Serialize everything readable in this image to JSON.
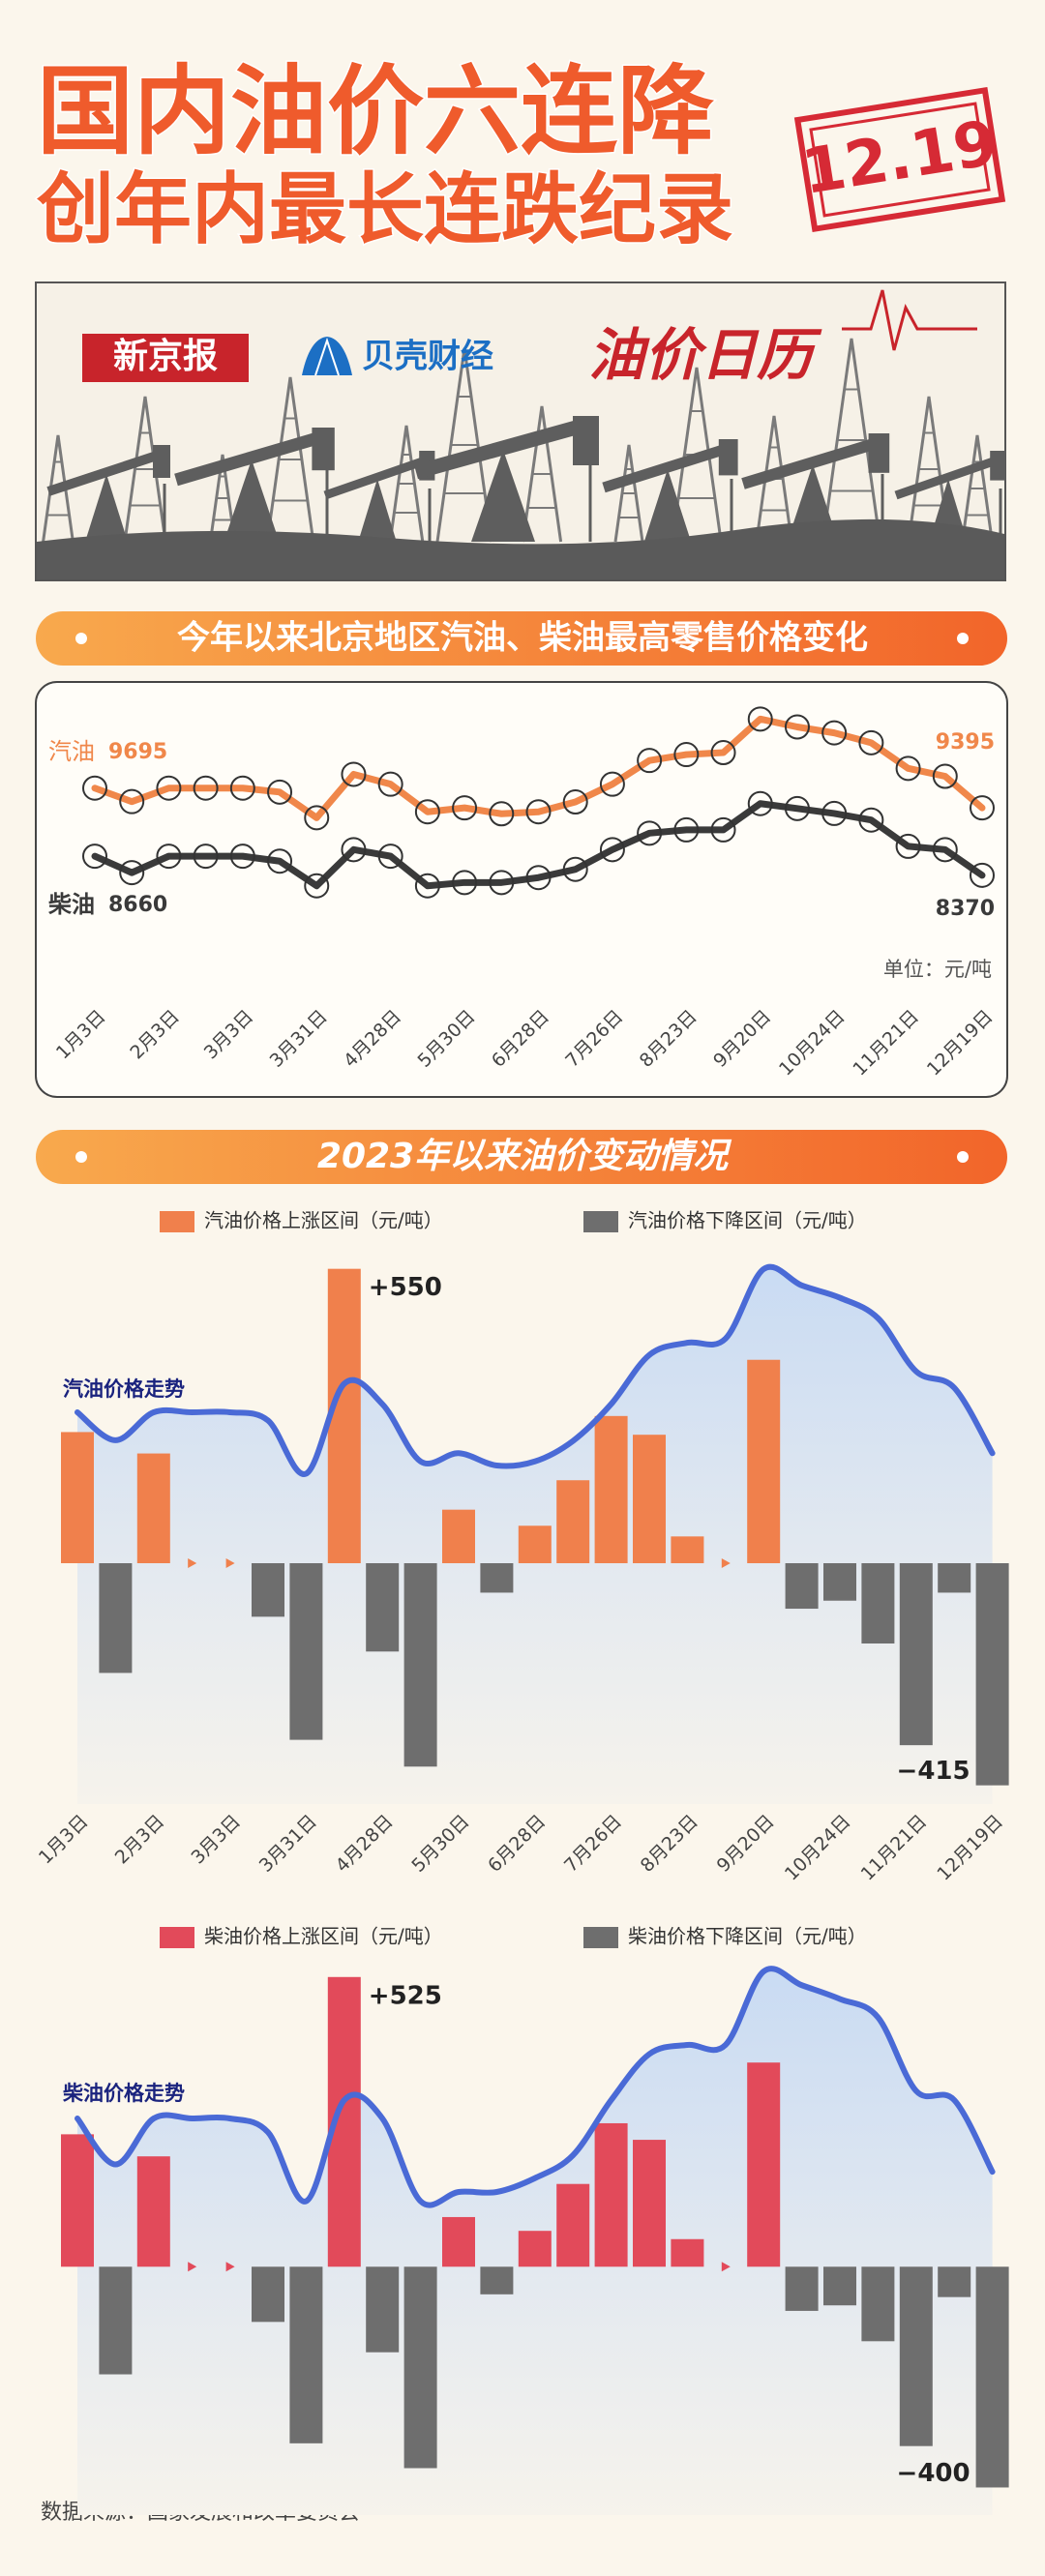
{
  "header": {
    "title_line1": "国内油价六连降",
    "title_line2": "创年内最长连跌纪录",
    "date_stamp": "12.19"
  },
  "banner": {
    "brand1": "新京报",
    "brand2": "贝壳财经",
    "column": "油价日历"
  },
  "source": "数据来源：国家发展和改革委员会",
  "chart_data": [
    {
      "type": "line",
      "title": "今年以来北京地区汽油、柴油最高零售价格变化",
      "unit": "单位：元/吨",
      "categories": [
        "1月3日",
        null,
        "2月3日",
        null,
        "3月3日",
        null,
        "3月31日",
        null,
        "4月28日",
        null,
        "5月30日",
        null,
        "6月28日",
        null,
        "7月26日",
        null,
        "8月23日",
        null,
        "9月20日",
        null,
        "10月24日",
        null,
        "11月21日",
        null,
        "12月19日"
      ],
      "ylim": [
        8000,
        11000
      ],
      "series": [
        {
          "name": "汽油",
          "color": "#f0874a",
          "values": [
            9695,
            9490,
            9695,
            9695,
            9695,
            9635,
            9245,
            9905,
            9755,
            9335,
            9395,
            9305,
            9335,
            9485,
            9755,
            10115,
            10205,
            10235,
            10745,
            10625,
            10535,
            10385,
            9995,
            9875,
            9395
          ]
        },
        {
          "name": "柴油",
          "color": "#3a3a3a",
          "values": [
            8660,
            8410,
            8660,
            8660,
            8660,
            8585,
            8210,
            8760,
            8660,
            8210,
            8260,
            8260,
            8335,
            8460,
            8760,
            9010,
            9060,
            9060,
            9460,
            9385,
            9310,
            9210,
            8810,
            8760,
            8370
          ]
        }
      ]
    },
    {
      "type": "bar",
      "title": "2023年以来油价变动情况",
      "trend_label": "汽油价格走势",
      "categories": [
        "1月3日",
        null,
        "2月3日",
        null,
        "3月3日",
        null,
        "3月31日",
        null,
        "4月28日",
        null,
        "5月30日",
        null,
        "6月28日",
        null,
        "7月26日",
        null,
        "8月23日",
        null,
        "9月20日",
        null,
        "10月24日",
        null,
        "11月21日",
        null,
        "12月19日"
      ],
      "values": [
        245,
        -205,
        205,
        0,
        0,
        -100,
        -330,
        550,
        -165,
        -380,
        100,
        -55,
        70,
        155,
        275,
        240,
        50,
        0,
        380,
        -85,
        -70,
        -150,
        -340,
        -55,
        -415
      ],
      "value_labels": [
        null,
        null,
        null,
        null,
        null,
        null,
        null,
        "+550",
        null,
        null,
        null,
        null,
        null,
        null,
        null,
        null,
        null,
        null,
        null,
        null,
        null,
        null,
        null,
        null,
        "−415"
      ],
      "legend": [
        {
          "name": "汽油价格上涨区间（元/吨）",
          "color": "#f0804c"
        },
        {
          "name": "汽油价格下降区间（元/吨）",
          "color": "#6e6e6e"
        }
      ],
      "ylim": [
        -450,
        600
      ]
    },
    {
      "type": "bar",
      "trend_label": "柴油价格走势",
      "values": [
        240,
        -195,
        200,
        0,
        0,
        -100,
        -320,
        525,
        -155,
        -365,
        90,
        -50,
        65,
        150,
        260,
        230,
        50,
        0,
        370,
        -80,
        -70,
        -135,
        -325,
        -55,
        -400
      ],
      "value_labels": [
        null,
        null,
        null,
        null,
        null,
        null,
        null,
        "+525",
        null,
        null,
        null,
        null,
        null,
        null,
        null,
        null,
        null,
        null,
        null,
        null,
        null,
        null,
        null,
        null,
        "−400"
      ],
      "legend": [
        {
          "name": "柴油价格上涨区间（元/吨）",
          "color": "#e24a5a"
        },
        {
          "name": "柴油价格下降区间（元/吨）",
          "color": "#6e6e6e"
        }
      ],
      "ylim": [
        -450,
        600
      ]
    }
  ]
}
